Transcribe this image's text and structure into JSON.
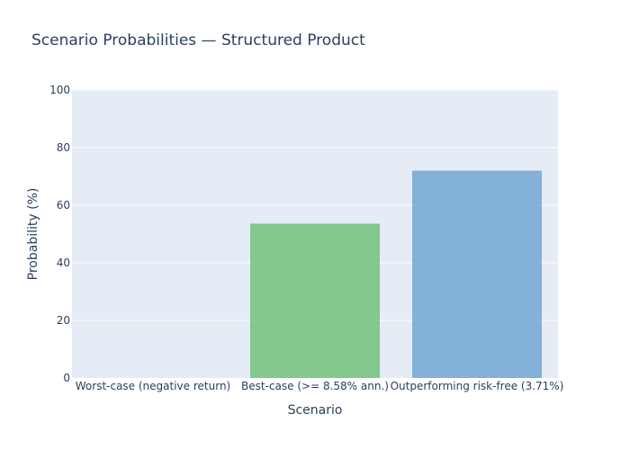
{
  "chart_data": {
    "type": "bar",
    "title": "Scenario Probabilities — Structured Product",
    "xlabel": "Scenario",
    "ylabel": "Probability (%)",
    "categories": [
      "Worst-case (negative return)",
      "Best-case (>= 8.58% ann.)",
      "Outperforming risk-free (3.71%)"
    ],
    "values": [
      0,
      53.6,
      72.0
    ],
    "bar_colors": [
      "#d62728",
      "#6abf73",
      "#6aa3d0"
    ],
    "ylim": [
      0,
      100
    ],
    "yticks": [
      0,
      20,
      40,
      60,
      80,
      100
    ],
    "grid": true,
    "legend": false
  },
  "colors": {
    "plot_background": "#e5ecf6",
    "gridline": "#ffffff",
    "text": "#2a3f5f"
  }
}
